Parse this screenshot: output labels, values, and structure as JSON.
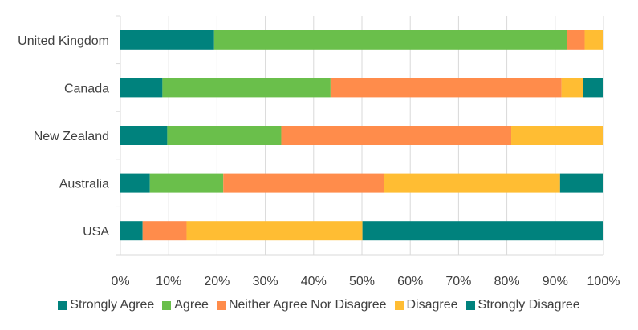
{
  "chart_data": {
    "type": "bar",
    "orientation": "horizontal",
    "stacked": "percent",
    "categories": [
      "United Kingdom",
      "Canada",
      "New Zealand",
      "Australia",
      "USA"
    ],
    "series": [
      {
        "name": "Strongly Agree",
        "color": "#00827d",
        "values": [
          19.4,
          8.7,
          9.7,
          6.1,
          4.6
        ]
      },
      {
        "name": "Agree",
        "color": "#6abf4b",
        "values": [
          73.0,
          34.8,
          23.6,
          15.2,
          0
        ]
      },
      {
        "name": "Neither Agree Nor Disagree",
        "color": "#ff8c4b",
        "values": [
          3.7,
          47.8,
          47.6,
          33.3,
          9.1
        ]
      },
      {
        "name": "Disagree",
        "color": "#ffbd33",
        "values": [
          3.9,
          4.4,
          19.1,
          36.4,
          36.4
        ]
      },
      {
        "name": "Strongly Disagree",
        "color": "#00827d",
        "values": [
          0,
          4.3,
          0,
          9.0,
          49.9
        ]
      }
    ],
    "x_ticks": [
      "0%",
      "10%",
      "20%",
      "30%",
      "40%",
      "50%",
      "60%",
      "70%",
      "80%",
      "90%",
      "100%"
    ],
    "xlim": [
      0,
      100
    ],
    "grid": "vertical",
    "legend_position": "bottom"
  }
}
